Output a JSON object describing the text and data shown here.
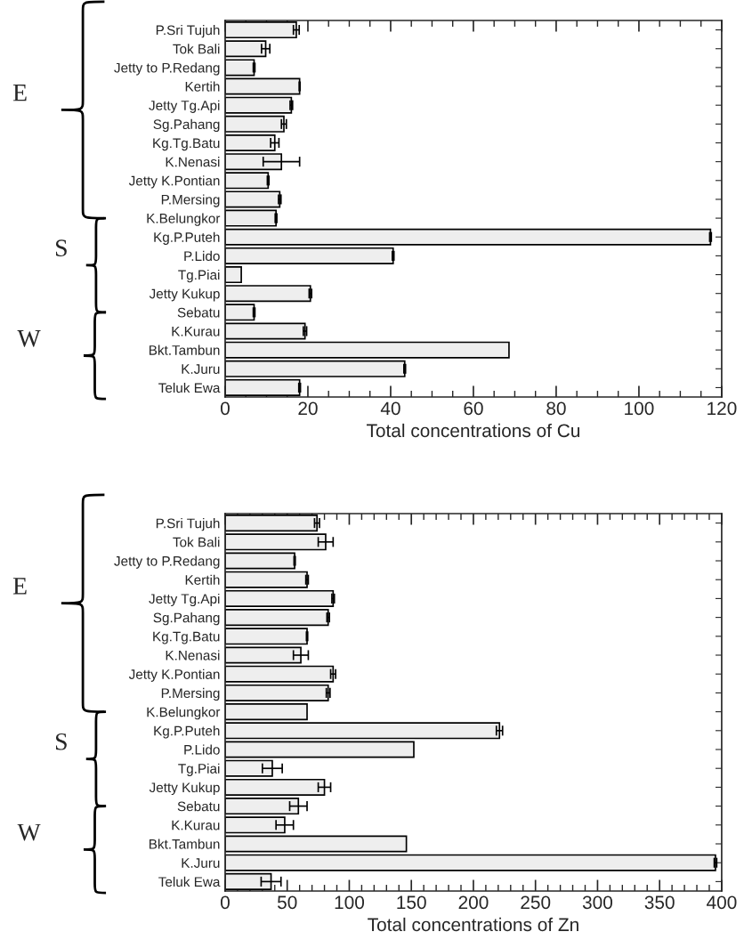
{
  "chart_data": [
    {
      "type": "bar",
      "orientation": "horizontal",
      "xlabel": "Total concentrations of Cu",
      "color": "#eeeeee",
      "categories": [
        "P.Sri Tujuh",
        "Tok Bali",
        "Jetty to P.Redang",
        "Kertih",
        "Jetty Tg.Api",
        "Sg.Pahang",
        "Kg.Tg.Batu",
        "K.Nenasi",
        "Jetty K.Pontian",
        "P.Mersing",
        "K.Belungkor",
        "Kg.P.Puteh",
        "P.Lido",
        "Tg.Piai",
        "Jetty Kukup",
        "Sebatu",
        "K.Kurau",
        "Bkt.Tambun",
        "K.Juru",
        "Teluk Ewa"
      ],
      "values": [
        17.2,
        9.8,
        7.0,
        18.0,
        16.0,
        14.2,
        12.0,
        13.6,
        10.4,
        13.2,
        12.3,
        117.3,
        40.6,
        3.9,
        20.6,
        7.0,
        19.3,
        68.6,
        43.4,
        18.0
      ],
      "errors": [
        0.7,
        1.0,
        0.2,
        0.1,
        0.3,
        0.6,
        1.0,
        4.4,
        0.2,
        0.3,
        0.2,
        0.2,
        0.2,
        null,
        0.3,
        0.2,
        0.4,
        null,
        0.2,
        0.2
      ],
      "xlim": [
        0,
        120
      ],
      "xticks": [
        0,
        {
          "value": 5,
          "label": null
        },
        {
          "value": 10,
          "label": null
        },
        {
          "value": 15,
          "label": null
        },
        20,
        {
          "value": 25,
          "label": null
        },
        {
          "value": 30,
          "label": null
        },
        {
          "value": 35,
          "label": null
        },
        40,
        {
          "value": 45,
          "label": null
        },
        {
          "value": 50,
          "label": null
        },
        {
          "value": 55,
          "label": null
        },
        60,
        {
          "value": 65,
          "label": null
        },
        {
          "value": 70,
          "label": null
        },
        {
          "value": 75,
          "label": null
        },
        80,
        {
          "value": 85,
          "label": null
        },
        {
          "value": 90,
          "label": null
        },
        {
          "value": 95,
          "label": null
        },
        100,
        {
          "value": 105,
          "label": null
        },
        {
          "value": 110,
          "label": null
        },
        {
          "value": 115,
          "label": null
        },
        120
      ],
      "annotations": [
        "E",
        "S",
        "W"
      ],
      "grid": false,
      "legend": false
    },
    {
      "type": "bar",
      "orientation": "horizontal",
      "xlabel": "Total concentrations of Zn",
      "color": "#eeeeee",
      "categories": [
        "P.Sri Tujuh",
        "Tok Bali",
        "Jetty to P.Redang",
        "Kertih",
        "Jetty Tg.Api",
        "Sg.Pahang",
        "Kg.Tg.Batu",
        "K.Nenasi",
        "Jetty K.Pontian",
        "P.Mersing",
        "K.Belungkor",
        "Kg.P.Puteh",
        "P.Lido",
        "Tg.Piai",
        "Jetty Kukup",
        "Sebatu",
        "K.Kurau",
        "Bkt.Tambun",
        "K.Juru",
        "Teluk Ewa"
      ],
      "values": [
        74,
        81,
        56,
        66,
        87,
        83,
        66,
        61,
        87,
        83,
        66,
        221,
        152,
        38,
        80,
        59,
        48,
        146,
        395,
        37
      ],
      "errors": [
        2,
        6,
        0.5,
        1,
        1,
        1,
        0.5,
        6,
        2,
        1.5,
        null,
        2.5,
        null,
        8,
        5,
        7,
        7,
        null,
        1,
        8
      ],
      "xlim": [
        0,
        400
      ],
      "xticks": [
        0,
        {
          "value": 10,
          "label": null
        },
        {
          "value": 20,
          "label": null
        },
        {
          "value": 30,
          "label": null
        },
        {
          "value": 40,
          "label": null
        },
        50,
        {
          "value": 60,
          "label": null
        },
        {
          "value": 70,
          "label": null
        },
        {
          "value": 80,
          "label": null
        },
        {
          "value": 90,
          "label": null
        },
        100,
        {
          "value": 110,
          "label": null
        },
        {
          "value": 120,
          "label": null
        },
        {
          "value": 130,
          "label": null
        },
        {
          "value": 140,
          "label": null
        },
        150,
        {
          "value": 160,
          "label": null
        },
        {
          "value": 170,
          "label": null
        },
        {
          "value": 180,
          "label": null
        },
        {
          "value": 190,
          "label": null
        },
        200,
        {
          "value": 210,
          "label": null
        },
        {
          "value": 220,
          "label": null
        },
        {
          "value": 230,
          "label": null
        },
        {
          "value": 240,
          "label": null
        },
        250,
        {
          "value": 260,
          "label": null
        },
        {
          "value": 270,
          "label": null
        },
        {
          "value": 280,
          "label": null
        },
        {
          "value": 290,
          "label": null
        },
        300,
        {
          "value": 310,
          "label": null
        },
        {
          "value": 320,
          "label": null
        },
        {
          "value": 330,
          "label": null
        },
        {
          "value": 340,
          "label": null
        },
        350,
        {
          "value": 360,
          "label": null
        },
        {
          "value": 370,
          "label": null
        },
        {
          "value": 380,
          "label": null
        },
        {
          "value": 390,
          "label": null
        },
        400
      ],
      "annotations": [
        "E",
        "S",
        "W"
      ],
      "grid": false,
      "legend": false
    }
  ]
}
